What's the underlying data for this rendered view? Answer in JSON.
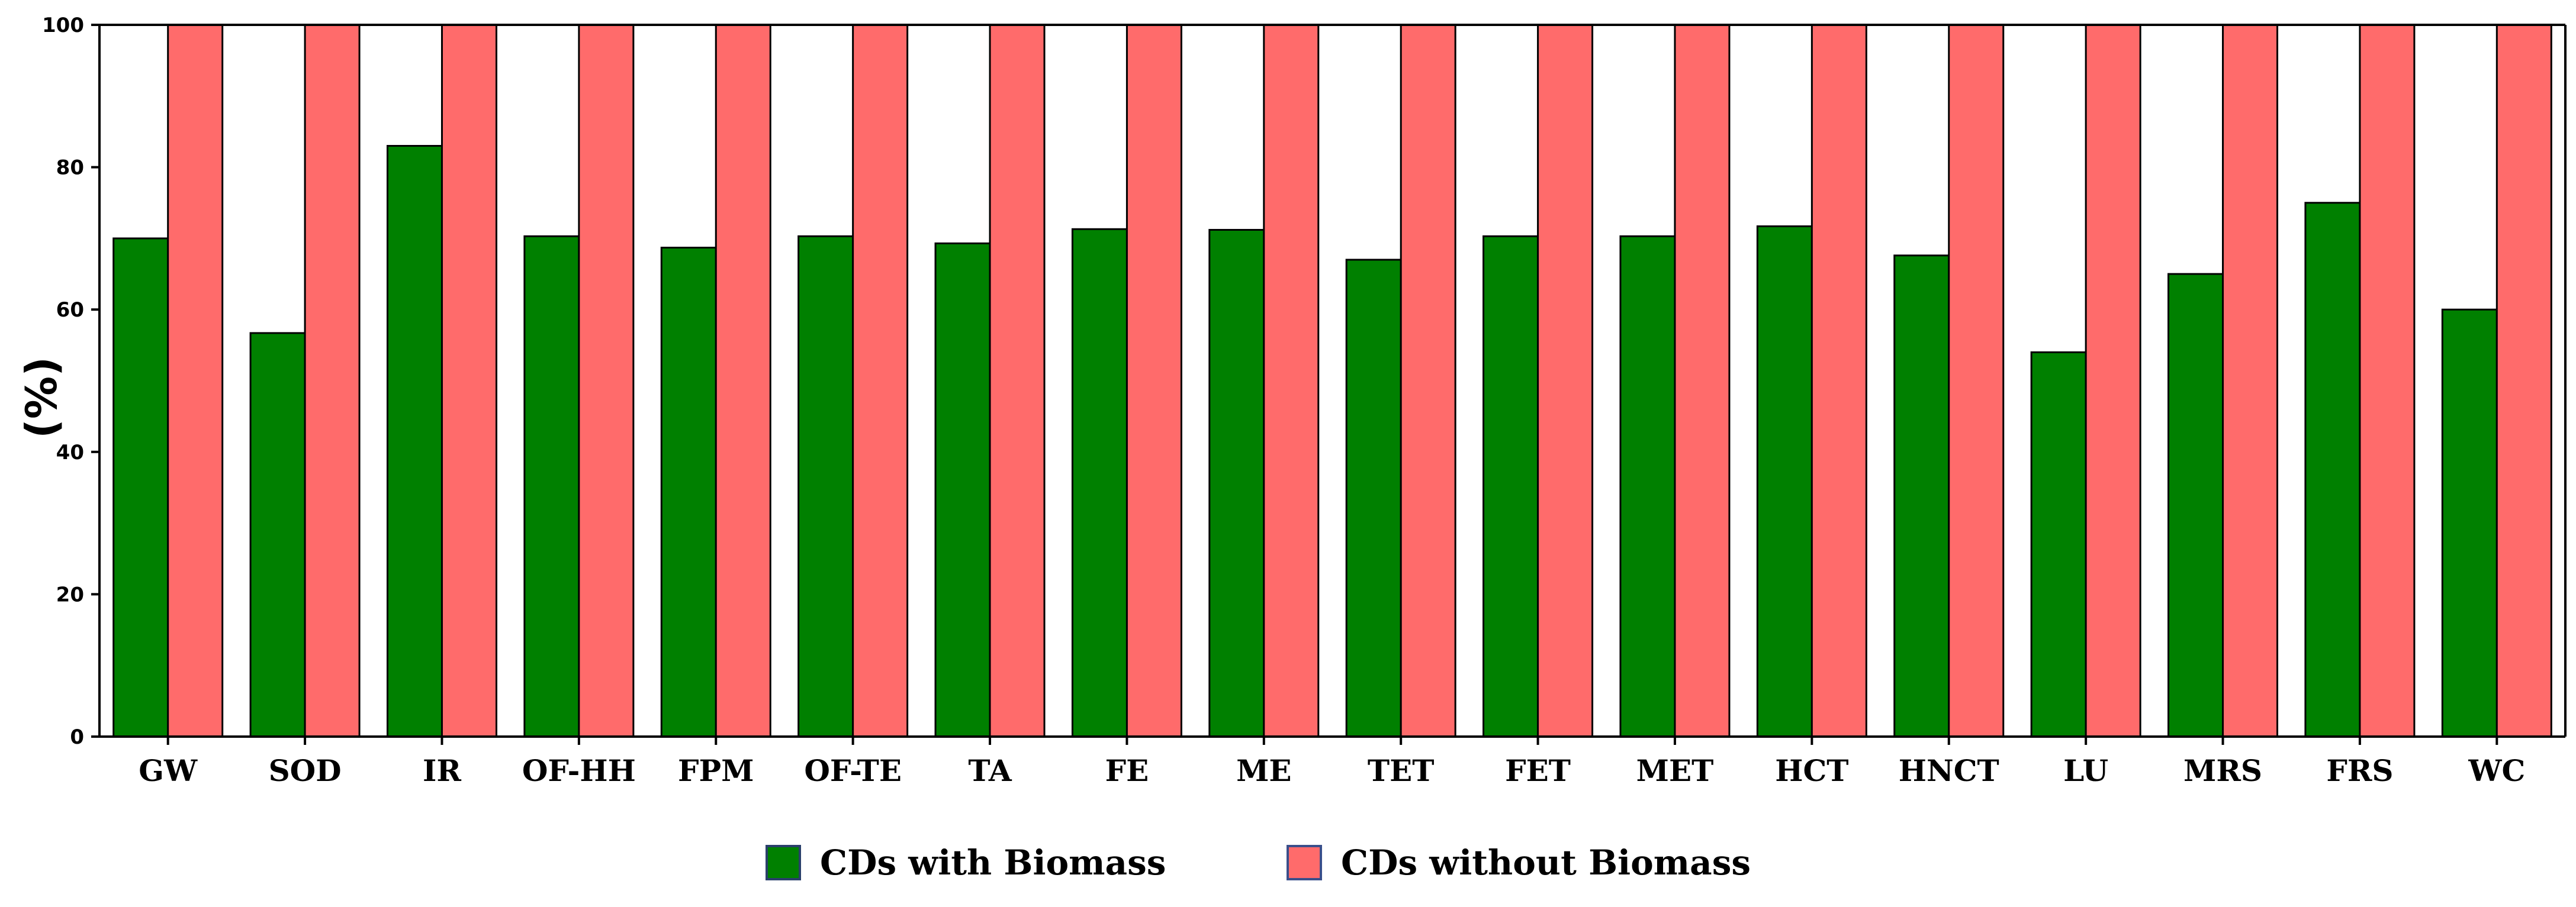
{
  "chart_data": {
    "type": "bar",
    "title": "",
    "xlabel": "",
    "ylabel": "(%)",
    "ylim": [
      0,
      100
    ],
    "yticks": [
      0,
      20,
      40,
      60,
      80,
      100
    ],
    "grid": false,
    "legend_position": "bottom",
    "categories": [
      "GW",
      "SOD",
      "IR",
      "OF-HH",
      "FPM",
      "OF-TE",
      "TA",
      "FE",
      "ME",
      "TET",
      "FET",
      "MET",
      "HCT",
      "HNCT",
      "LU",
      "MRS",
      "FRS",
      "WC"
    ],
    "series": [
      {
        "name": "CDs with Biomass",
        "color": "#008000",
        "values": [
          70,
          56.7,
          83,
          70.3,
          68.7,
          70.3,
          69.3,
          71.3,
          71.2,
          67,
          70.3,
          70.3,
          71.7,
          67.6,
          54,
          65,
          75,
          60
        ]
      },
      {
        "name": "CDs without Biomass",
        "color": "#ff6b6b",
        "values": [
          100,
          100,
          100,
          100,
          100,
          100,
          100,
          100,
          100,
          100,
          100,
          100,
          100,
          100,
          100,
          100,
          100,
          100
        ]
      }
    ]
  }
}
